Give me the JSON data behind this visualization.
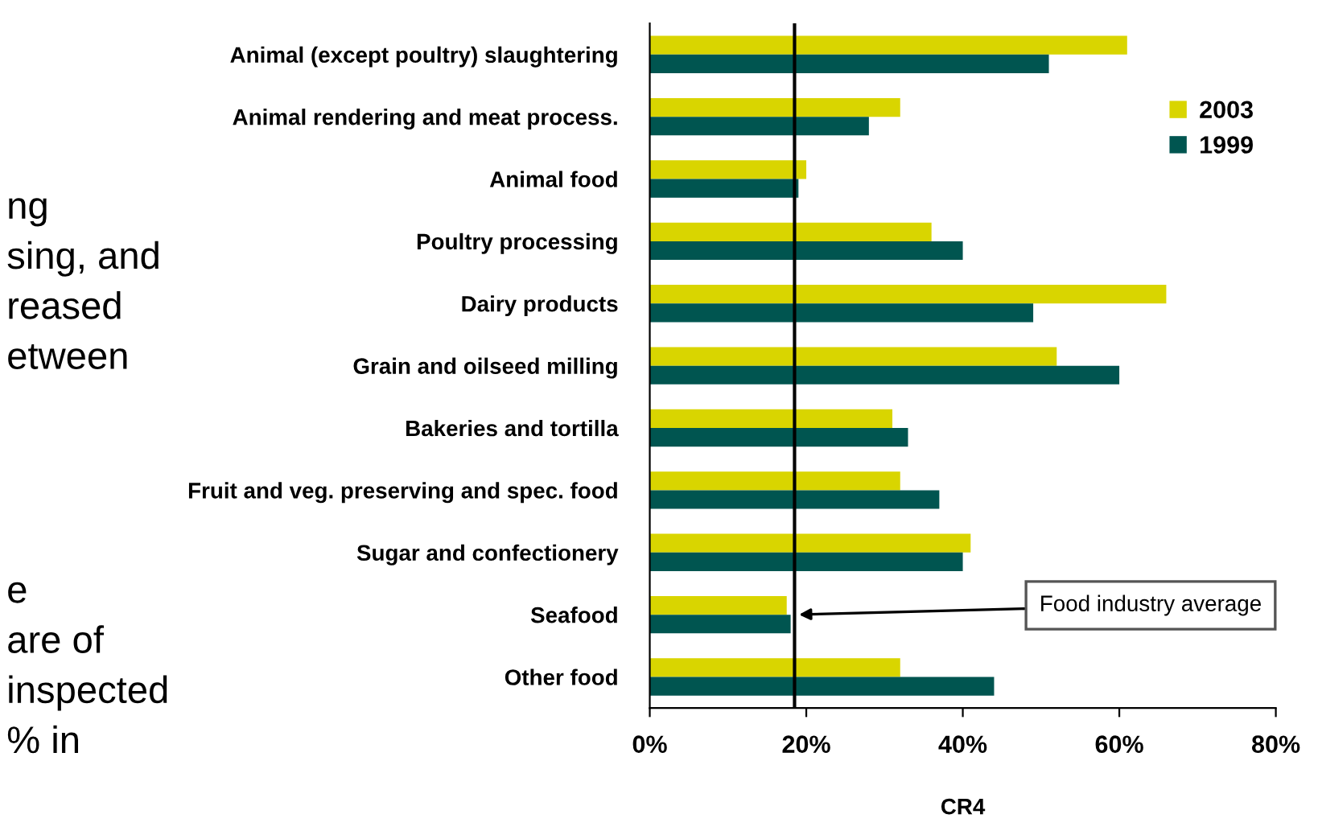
{
  "chart_data": {
    "type": "bar",
    "orientation": "horizontal",
    "xlabel": "CR4",
    "categories": [
      "Animal (except poultry) slaughtering",
      "Animal rendering and meat process.",
      "Animal food",
      "Poultry processing",
      "Dairy products",
      "Grain and oilseed milling",
      "Bakeries and tortilla",
      "Fruit and veg. preserving and spec. food",
      "Sugar and confectionery",
      "Seafood",
      "Other food"
    ],
    "series": [
      {
        "name": "2003",
        "color": "#d9d500",
        "values": [
          61,
          32,
          20,
          36,
          66,
          52,
          31,
          32,
          41,
          17.5,
          32
        ]
      },
      {
        "name": "1999",
        "color": "#005550",
        "values": [
          51,
          28,
          19,
          40,
          49,
          60,
          33,
          37,
          40,
          18,
          44
        ]
      }
    ],
    "xlim": [
      0,
      80
    ],
    "xticks": [
      {
        "value": 0,
        "label": "0%"
      },
      {
        "value": 20,
        "label": "20%"
      },
      {
        "value": 40,
        "label": "40%"
      },
      {
        "value": 60,
        "label": "60%"
      },
      {
        "value": 80,
        "label": "80%"
      }
    ],
    "ref_lines": [
      {
        "axis": "x",
        "value": 18.5,
        "label": "Food industry average",
        "color": "#000000"
      }
    ],
    "annotations": [
      "ng",
      "sing, and",
      "reased",
      "etween",
      "e",
      "are of",
      "inspected",
      "% in"
    ],
    "legend": "top right",
    "grid": false
  }
}
